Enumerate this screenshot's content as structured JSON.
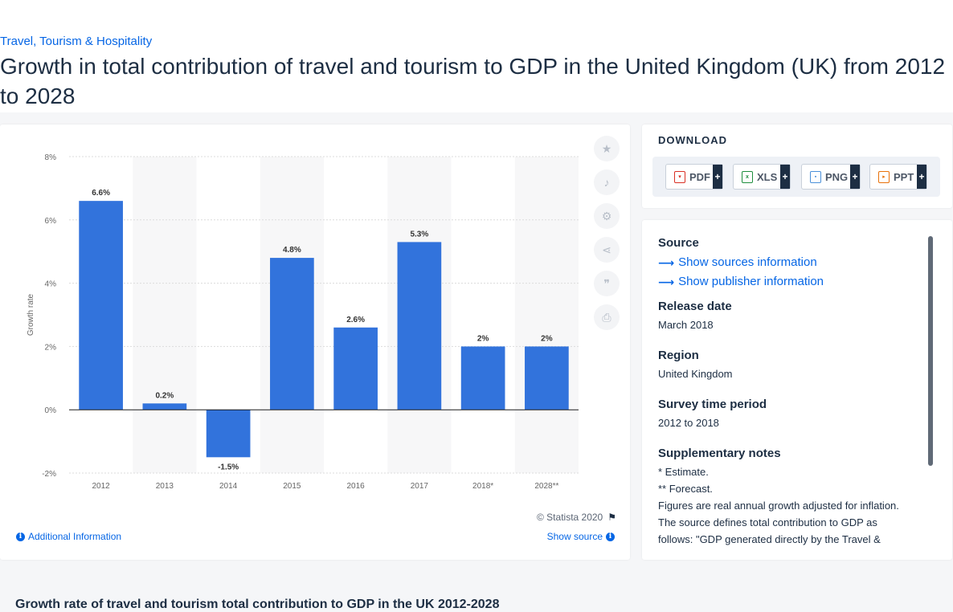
{
  "breadcrumb": "Travel, Tourism & Hospitality",
  "page_title": "Growth in total contribution of travel and tourism to GDP in the United Kingdom (UK) from 2012 to 2028",
  "chart_data": {
    "type": "bar",
    "categories": [
      "2012",
      "2013",
      "2014",
      "2015",
      "2016",
      "2017",
      "2018*",
      "2028**"
    ],
    "values": [
      6.6,
      0.2,
      -1.5,
      4.8,
      2.6,
      5.3,
      2,
      2
    ],
    "data_labels": [
      "6.6%",
      "0.2%",
      "-1.5%",
      "4.8%",
      "2.6%",
      "5.3%",
      "2%",
      "2%"
    ],
    "ylabel": "Growth rate",
    "xlabel": "",
    "ylim": [
      -2,
      8
    ],
    "yticks": [
      -2,
      0,
      2,
      4,
      6,
      8
    ],
    "ytick_labels": [
      "-2%",
      "0%",
      "2%",
      "4%",
      "6%",
      "8%"
    ],
    "grid": true,
    "bar_color": "#3273dc"
  },
  "chart_footer": {
    "copyright": "© Statista 2020",
    "additional_info": "Additional Information",
    "show_source": "Show source"
  },
  "tools": [
    "star-icon",
    "bell-icon",
    "gear-icon",
    "share-icon",
    "quote-icon",
    "print-icon"
  ],
  "download": {
    "title": "DOWNLOAD",
    "buttons": [
      {
        "label": "PDF",
        "icon_color": "#d93025"
      },
      {
        "label": "XLS",
        "icon_color": "#1e8e3e"
      },
      {
        "label": "PNG",
        "icon_color": "#4a90d9"
      },
      {
        "label": "PPT",
        "icon_color": "#e8710a"
      }
    ],
    "plus": "+"
  },
  "info": {
    "source_heading": "Source",
    "show_sources": "Show sources information",
    "show_publisher": "Show publisher information",
    "release_heading": "Release date",
    "release_value": "March 2018",
    "region_heading": "Region",
    "region_value": "United Kingdom",
    "survey_heading": "Survey time period",
    "survey_value": "2012 to 2018",
    "notes_heading": "Supplementary notes",
    "notes": [
      "* Estimate.",
      "** Forecast.",
      "Figures are real annual growth adjusted for inflation.",
      "The source defines total contribution to GDP as follows: \"GDP generated directly by the Travel &"
    ]
  },
  "bottom_title": "Growth rate of travel and tourism total contribution to GDP in the UK 2012-2028"
}
